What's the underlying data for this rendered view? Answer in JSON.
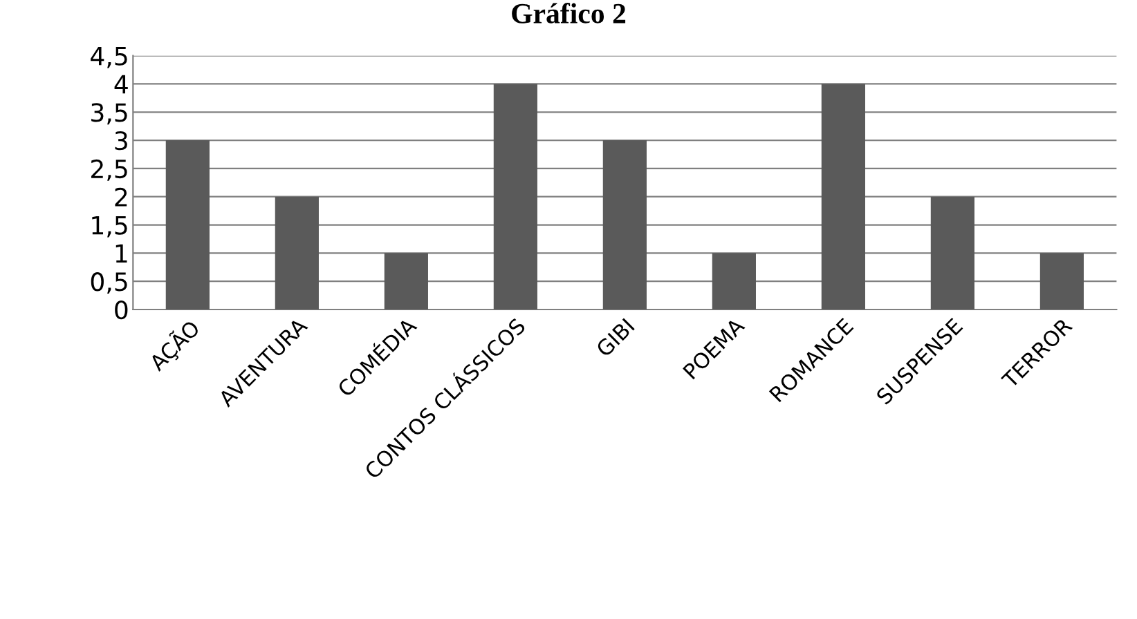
{
  "chart_data": {
    "type": "bar",
    "title": "Gráfico 2",
    "categories": [
      "AÇÃO",
      "AVENTURA",
      "COMÉDIA",
      "CONTOS CLÁSSICOS",
      "GIBI",
      "POEMA",
      "ROMANCE",
      "SUSPENSE",
      "TERROR"
    ],
    "values": [
      3,
      2,
      1,
      4,
      3,
      1,
      4,
      2,
      1
    ],
    "color": "#5a5a5a",
    "ylim": [
      0,
      4.5
    ],
    "yticks": [
      0,
      {
        "value": 0.5,
        "label": "0,5"
      },
      1,
      {
        "value": 1.5,
        "label": "1,5"
      },
      2,
      {
        "value": 2.5,
        "label": "2,5"
      },
      3,
      {
        "value": 3.5,
        "label": "3,5"
      },
      4,
      {
        "value": 4.5,
        "label": "4,5"
      }
    ],
    "grid": "y",
    "legend": false
  }
}
